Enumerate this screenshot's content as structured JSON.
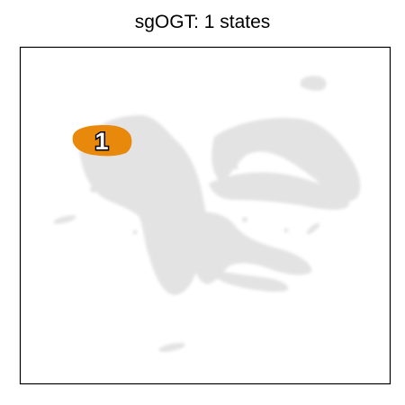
{
  "chart_data": {
    "type": "scatter",
    "title": "sgOGT: 1 states",
    "xlabel": "",
    "ylabel": "",
    "grid": false,
    "legend": "none",
    "background_color": "#e3e3e3",
    "states": [
      {
        "label": "1",
        "color": "#e8890c"
      }
    ]
  }
}
